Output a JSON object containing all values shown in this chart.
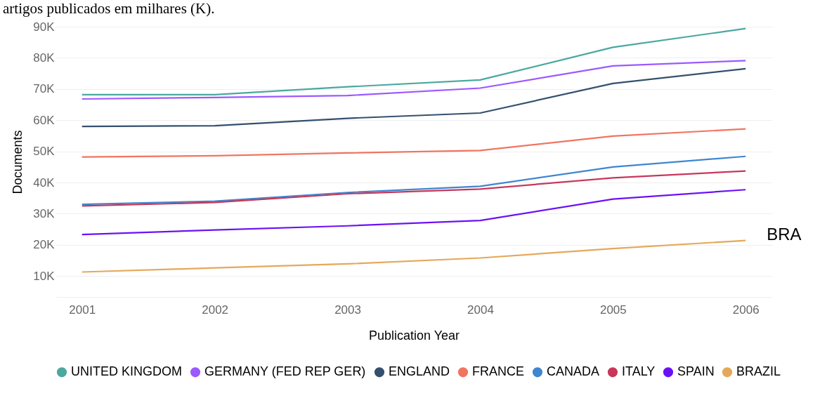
{
  "chart_data": {
    "type": "line",
    "title": "artigos publicados em milhares (K).",
    "xlabel": "Publication Year",
    "ylabel": "Documents",
    "x": [
      2001,
      2002,
      2003,
      2004,
      2005,
      2006
    ],
    "xlim": [
      2000.8,
      2006.2
    ],
    "xticks": [
      2001,
      2002,
      2003,
      2004,
      2005,
      2006
    ],
    "ylim": [
      3300,
      90000
    ],
    "yticks": [
      {
        "value": 10000,
        "label": "10K"
      },
      {
        "value": 20000,
        "label": "20K"
      },
      {
        "value": 30000,
        "label": "30K"
      },
      {
        "value": 40000,
        "label": "40K"
      },
      {
        "value": 50000,
        "label": "50K"
      },
      {
        "value": 60000,
        "label": "60K"
      },
      {
        "value": 70000,
        "label": "70K"
      },
      {
        "value": 80000,
        "label": "80K"
      },
      {
        "value": 90000,
        "label": "90K"
      }
    ],
    "grid": "y",
    "legend": "bottom",
    "marker": "none",
    "line_style": "solid",
    "annotations": [
      {
        "text": "BRA",
        "x": 2006,
        "y": 21400
      }
    ],
    "series": [
      {
        "name": "UNITED KINGDOM",
        "color": "#4aa89f",
        "values": [
          68200,
          68200,
          70700,
          72900,
          83400,
          89400
        ]
      },
      {
        "name": "GERMANY (FED REP GER)",
        "color": "#9b59ff",
        "values": [
          66800,
          67300,
          67900,
          70300,
          77400,
          79100
        ]
      },
      {
        "name": "ENGLAND",
        "color": "#34506e",
        "values": [
          58000,
          58200,
          60600,
          62300,
          71800,
          76500
        ]
      },
      {
        "name": "FRANCE",
        "color": "#f07560",
        "values": [
          48200,
          48600,
          49500,
          50300,
          54900,
          57200
        ]
      },
      {
        "name": "CANADA",
        "color": "#3f86d0",
        "values": [
          33000,
          34000,
          36800,
          38800,
          45000,
          48400
        ]
      },
      {
        "name": "ITALY",
        "color": "#c8375a",
        "values": [
          32500,
          33600,
          36400,
          37900,
          41500,
          43700
        ]
      },
      {
        "name": "SPAIN",
        "color": "#6b12f5",
        "values": [
          23300,
          24800,
          26100,
          27800,
          34700,
          37700
        ]
      },
      {
        "name": "BRAZIL",
        "color": "#e5a85a",
        "values": [
          11300,
          12600,
          13900,
          15800,
          18800,
          21400
        ]
      }
    ]
  }
}
